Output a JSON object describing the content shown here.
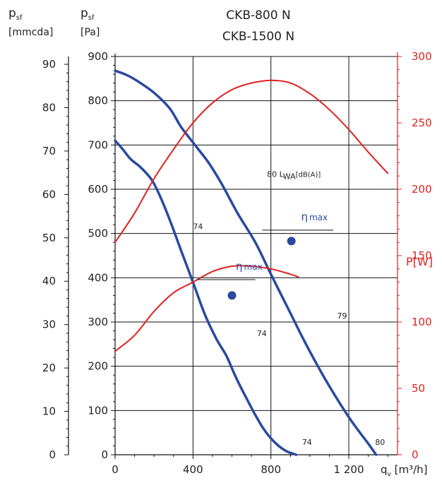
{
  "chart_data": {
    "type": "line",
    "title": [
      "CKB-800 N",
      "CKB-1500 N"
    ],
    "x_axis": {
      "label": "q",
      "label_sub": "v",
      "unit": " [m³/h]",
      "range": [
        0,
        1450
      ],
      "ticks": [
        {
          "value": 0,
          "label": "0"
        },
        {
          "value": 400,
          "label": "400"
        },
        {
          "value": 800,
          "label": "800"
        },
        {
          "value": 1200,
          "label": "1 200"
        }
      ]
    },
    "y_axis_pa": {
      "label": "p",
      "label_sub": "sf",
      "unit": "[Pa]",
      "range": [
        0,
        900
      ],
      "ticks": [
        0,
        100,
        200,
        300,
        400,
        500,
        600,
        700,
        800,
        900
      ]
    },
    "y_axis_mmcda": {
      "label": "p",
      "label_sub": "sf",
      "unit": "[mmcda]",
      "range": [
        0,
        91.8
      ],
      "ticks": [
        0,
        10,
        20,
        30,
        40,
        50,
        60,
        70,
        80,
        90
      ]
    },
    "y_axis_power": {
      "label": "P[W]",
      "range": [
        0,
        300
      ],
      "ticks": [
        0,
        50,
        100,
        150,
        200,
        250,
        300
      ]
    },
    "grid": true,
    "series": [
      {
        "axis": "pressure",
        "color": "#2a4aa0",
        "points": [
          [
            0,
            710
          ],
          [
            40,
            690
          ],
          [
            80,
            668
          ],
          [
            130,
            650
          ],
          [
            190,
            620
          ],
          [
            240,
            575
          ],
          [
            290,
            520
          ],
          [
            340,
            460
          ],
          [
            400,
            390
          ],
          [
            460,
            318
          ],
          [
            520,
            262
          ],
          [
            570,
            225
          ],
          [
            610,
            185
          ],
          [
            640,
            157
          ],
          [
            680,
            123
          ],
          [
            720,
            90
          ],
          [
            760,
            60
          ],
          [
            800,
            37
          ],
          [
            840,
            20
          ],
          [
            880,
            8
          ],
          [
            930,
            0
          ]
        ]
      },
      {
        "axis": "pressure",
        "color": "#2a4aa0",
        "points": [
          [
            0,
            868
          ],
          [
            60,
            858
          ],
          [
            120,
            843
          ],
          [
            200,
            818
          ],
          [
            280,
            783
          ],
          [
            340,
            740
          ],
          [
            410,
            700
          ],
          [
            480,
            660
          ],
          [
            550,
            610
          ],
          [
            630,
            545
          ],
          [
            720,
            480
          ],
          [
            800,
            408
          ],
          [
            900,
            320
          ],
          [
            980,
            250
          ],
          [
            1080,
            170
          ],
          [
            1200,
            85
          ],
          [
            1300,
            25
          ],
          [
            1340,
            0
          ]
        ]
      },
      {
        "axis": "power",
        "color": "#e02020",
        "points": [
          [
            0,
            78
          ],
          [
            100,
            90
          ],
          [
            200,
            108
          ],
          [
            300,
            122
          ],
          [
            400,
            130
          ],
          [
            500,
            138
          ],
          [
            600,
            142
          ],
          [
            700,
            142
          ],
          [
            800,
            140
          ],
          [
            900,
            136
          ],
          [
            940,
            134
          ]
        ]
      },
      {
        "axis": "power",
        "color": "#e02020",
        "points": [
          [
            0,
            160
          ],
          [
            100,
            182
          ],
          [
            200,
            208
          ],
          [
            300,
            230
          ],
          [
            400,
            250
          ],
          [
            500,
            265
          ],
          [
            600,
            275
          ],
          [
            700,
            280
          ],
          [
            800,
            282
          ],
          [
            900,
            280
          ],
          [
            1000,
            272
          ],
          [
            1100,
            260
          ],
          [
            1200,
            245
          ],
          [
            1300,
            228
          ],
          [
            1400,
            212
          ]
        ]
      }
    ],
    "eta_max_points": [
      {
        "x": 600,
        "y": 360
      },
      {
        "x": 905,
        "y": 483
      }
    ],
    "annotations": [
      {
        "text": "74",
        "x": 400,
        "y": 510
      },
      {
        "text": "74",
        "x": 728,
        "y": 268
      },
      {
        "text": "74",
        "x": 960,
        "y": 22
      },
      {
        "text": "80",
        "x": 1335,
        "y": 22
      },
      {
        "text": "79",
        "x": 1140,
        "y": 308
      }
    ],
    "sound_label": {
      "text": "80 L",
      "sub": "WA",
      "suffix": "[dB(A)]",
      "x": 780,
      "y": 628
    },
    "eta_labels": [
      {
        "symbol": "η",
        "text": "max",
        "x": 620,
        "y": 418,
        "line_to_x": 720
      },
      {
        "symbol": "η",
        "text": "max",
        "x": 955,
        "y": 530,
        "line_to_x": 1120
      }
    ]
  }
}
